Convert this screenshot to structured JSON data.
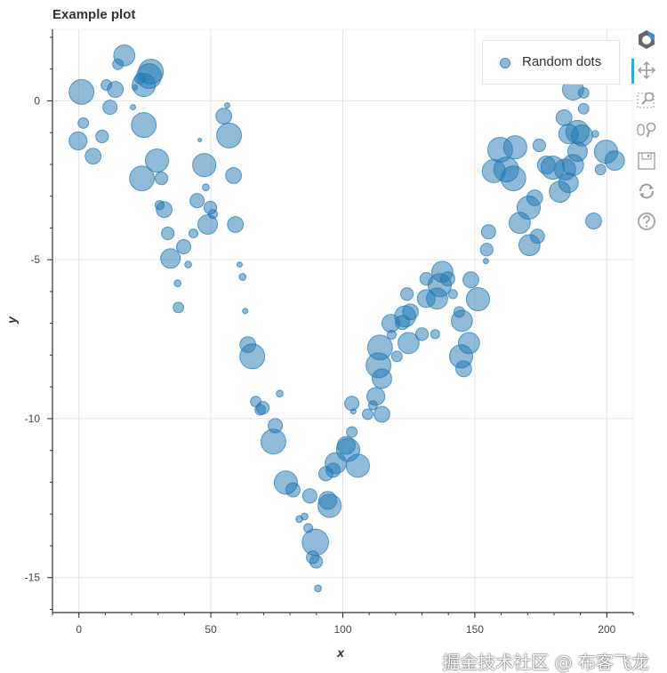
{
  "chart_data": {
    "type": "scatter",
    "title": "Example plot",
    "xlabel": "x",
    "ylabel": "y",
    "xlim": [
      -10,
      210
    ],
    "ylim": [
      -16.1,
      2.25
    ],
    "xticks": [
      0,
      50,
      100,
      150,
      200
    ],
    "yticks": [
      0,
      -5,
      -10,
      -15
    ],
    "xtick_labels": [
      "0",
      "50",
      "100",
      "150",
      "200"
    ],
    "ytick_labels": [
      "0",
      "-5",
      "-10",
      "-15"
    ],
    "grid": true,
    "legend": {
      "position": "top-right",
      "entries": [
        "Random dots"
      ]
    },
    "color": "#1f77b4",
    "alpha": 0.5,
    "series": [
      {
        "name": "Random dots",
        "points": [
          [
            1.0,
            0.28,
            4.7
          ],
          [
            -0.3,
            -1.26,
            3.4
          ],
          [
            1.7,
            -0.7,
            2.0
          ],
          [
            5.4,
            -1.74,
            3.0
          ],
          [
            8.8,
            -1.12,
            2.4
          ],
          [
            10.4,
            0.5,
            2.0
          ],
          [
            11.8,
            -0.2,
            2.7
          ],
          [
            13.8,
            0.36,
            3.0
          ],
          [
            14.8,
            1.15,
            2.0
          ],
          [
            17.2,
            1.43,
            4.0
          ],
          [
            20.5,
            -0.2,
            1.0
          ],
          [
            21.2,
            0.42,
            1.0
          ],
          [
            24.6,
            0.5,
            4.4
          ],
          [
            26.6,
            0.78,
            4.7
          ],
          [
            27.3,
            0.92,
            4.7
          ],
          [
            24.6,
            -0.76,
            4.7
          ],
          [
            23.2,
            0.7,
            2.0
          ],
          [
            29.6,
            -1.88,
            4.4
          ],
          [
            31.3,
            -2.44,
            2.4
          ],
          [
            23.9,
            -2.44,
            4.7
          ],
          [
            32.3,
            -3.42,
            3.0
          ],
          [
            30.6,
            -3.28,
            1.7
          ],
          [
            33.7,
            -4.17,
            2.4
          ],
          [
            34.7,
            -4.96,
            3.7
          ],
          [
            39.7,
            -4.59,
            2.7
          ],
          [
            41.4,
            -5.15,
            1.3
          ],
          [
            37.4,
            -5.74,
            1.3
          ],
          [
            37.7,
            -6.5,
            2.0
          ],
          [
            44.8,
            -3.14,
            2.7
          ],
          [
            43.4,
            -4.17,
            1.7
          ],
          [
            47.5,
            -2.02,
            4.4
          ],
          [
            48.1,
            -2.72,
            1.3
          ],
          [
            49.8,
            -3.36,
            2.4
          ],
          [
            48.8,
            -3.89,
            3.7
          ],
          [
            50.8,
            -3.56,
            1.7
          ],
          [
            54.9,
            -0.48,
            3.0
          ],
          [
            56.9,
            -1.09,
            4.7
          ],
          [
            58.6,
            -2.35,
            3.0
          ],
          [
            56.2,
            -0.14,
            1.0
          ],
          [
            45.8,
            -1.23,
            0.7
          ],
          [
            59.3,
            -3.89,
            3.0
          ],
          [
            60.9,
            -5.15,
            1.0
          ],
          [
            62.0,
            -5.54,
            1.3
          ],
          [
            63.0,
            -6.61,
            1.0
          ],
          [
            64.0,
            -7.67,
            3.0
          ],
          [
            65.7,
            -8.04,
            4.7
          ],
          [
            67.0,
            -9.46,
            2.0
          ],
          [
            68.7,
            -9.72,
            2.0
          ],
          [
            69.7,
            -9.66,
            2.4
          ],
          [
            76.1,
            -9.21,
            1.3
          ],
          [
            74.4,
            -10.22,
            2.7
          ],
          [
            73.7,
            -10.72,
            4.7
          ],
          [
            78.4,
            -12.01,
            4.4
          ],
          [
            81.1,
            -12.24,
            2.7
          ],
          [
            83.5,
            -13.16,
            1.3
          ],
          [
            85.5,
            -13.08,
            1.3
          ],
          [
            86.9,
            -13.44,
            1.7
          ],
          [
            87.5,
            -12.43,
            2.7
          ],
          [
            89.6,
            -13.89,
            5.0
          ],
          [
            88.6,
            -14.36,
            2.4
          ],
          [
            89.9,
            -14.5,
            2.4
          ],
          [
            90.6,
            -15.34,
            1.3
          ],
          [
            93.6,
            -11.73,
            2.7
          ],
          [
            94.3,
            -12.57,
            3.4
          ],
          [
            95.0,
            -12.74,
            4.4
          ],
          [
            96.3,
            -11.62,
            2.7
          ],
          [
            97.3,
            -11.4,
            4.0
          ],
          [
            101.3,
            -10.84,
            3.4
          ],
          [
            102.0,
            -10.98,
            4.4
          ],
          [
            103.4,
            -10.42,
            2.0
          ],
          [
            104.0,
            -9.77,
            1.0
          ],
          [
            105.7,
            -11.48,
            4.4
          ],
          [
            103.4,
            -9.52,
            2.7
          ],
          [
            109.4,
            -9.86,
            2.0
          ],
          [
            111.4,
            -9.58,
            1.7
          ],
          [
            112.5,
            -9.3,
            3.4
          ],
          [
            114.8,
            -9.86,
            3.0
          ],
          [
            113.5,
            -8.32,
            4.7
          ],
          [
            114.8,
            -8.74,
            3.7
          ],
          [
            114.1,
            -7.76,
            4.7
          ],
          [
            118.2,
            -7.0,
            3.4
          ],
          [
            120.5,
            -8.04,
            2.0
          ],
          [
            118.5,
            -7.36,
            1.7
          ],
          [
            122.6,
            -6.97,
            2.7
          ],
          [
            123.6,
            -6.78,
            4.0
          ],
          [
            124.9,
            -7.62,
            4.0
          ],
          [
            124.3,
            -6.08,
            2.4
          ],
          [
            125.6,
            -6.64,
            3.0
          ],
          [
            130.0,
            -7.34,
            2.4
          ],
          [
            131.6,
            -6.22,
            3.4
          ],
          [
            131.6,
            -5.6,
            2.4
          ],
          [
            135.0,
            -7.34,
            1.7
          ],
          [
            135.7,
            -6.22,
            4.0
          ],
          [
            136.7,
            -5.8,
            4.4
          ],
          [
            137.7,
            -5.38,
            4.0
          ],
          [
            139.7,
            -5.6,
            2.7
          ],
          [
            141.7,
            -6.08,
            1.7
          ],
          [
            144.1,
            -6.64,
            2.0
          ],
          [
            145.1,
            -6.92,
            4.0
          ],
          [
            147.8,
            -7.62,
            4.0
          ],
          [
            144.8,
            -8.04,
            4.4
          ],
          [
            145.8,
            -8.43,
            3.0
          ],
          [
            148.5,
            -5.63,
            3.0
          ],
          [
            151.2,
            -6.24,
            4.4
          ],
          [
            155.2,
            -4.12,
            2.7
          ],
          [
            154.5,
            -4.68,
            2.4
          ],
          [
            157.2,
            -2.21,
            4.4
          ],
          [
            159.6,
            -1.54,
            4.7
          ],
          [
            161.9,
            -2.16,
            4.7
          ],
          [
            165.3,
            -1.46,
            4.4
          ],
          [
            164.6,
            -2.44,
            4.7
          ],
          [
            167.0,
            -3.84,
            4.0
          ],
          [
            170.4,
            -3.36,
            4.4
          ],
          [
            172.7,
            -3.05,
            3.0
          ],
          [
            173.7,
            -4.26,
            2.7
          ],
          [
            174.4,
            -1.4,
            2.4
          ],
          [
            170.7,
            -4.54,
            4.0
          ],
          [
            177.1,
            -2.02,
            3.4
          ],
          [
            179.5,
            -2.1,
            4.4
          ],
          [
            182.2,
            -2.86,
            4.0
          ],
          [
            184.2,
            -2.16,
            4.0
          ],
          [
            187.2,
            -2.02,
            4.0
          ],
          [
            185.5,
            -2.58,
            3.7
          ],
          [
            188.9,
            -1.6,
            3.7
          ],
          [
            190.6,
            -1.09,
            4.0
          ],
          [
            191.2,
            -0.25,
            2.0
          ],
          [
            195.6,
            -1.04,
            1.3
          ],
          [
            191.2,
            0.25,
            2.0
          ],
          [
            187.2,
            0.36,
            4.0
          ],
          [
            183.8,
            -0.53,
            3.0
          ],
          [
            188.9,
            -0.98,
            4.4
          ],
          [
            185.5,
            -1.04,
            3.7
          ],
          [
            199.7,
            -1.6,
            4.4
          ],
          [
            203.0,
            -1.88,
            3.7
          ],
          [
            195.0,
            -3.78,
            3.0
          ],
          [
            197.6,
            -2.16,
            2.0
          ],
          [
            154.2,
            -5.04,
            1.0
          ]
        ]
      }
    ]
  },
  "toolbar": {
    "tools": [
      "bokeh-logo-icon",
      "pan-icon",
      "box-zoom-icon",
      "wheel-zoom-icon",
      "save-icon",
      "reset-icon",
      "help-icon"
    ]
  },
  "watermark": "掘金技术社区 @ 布客飞龙"
}
